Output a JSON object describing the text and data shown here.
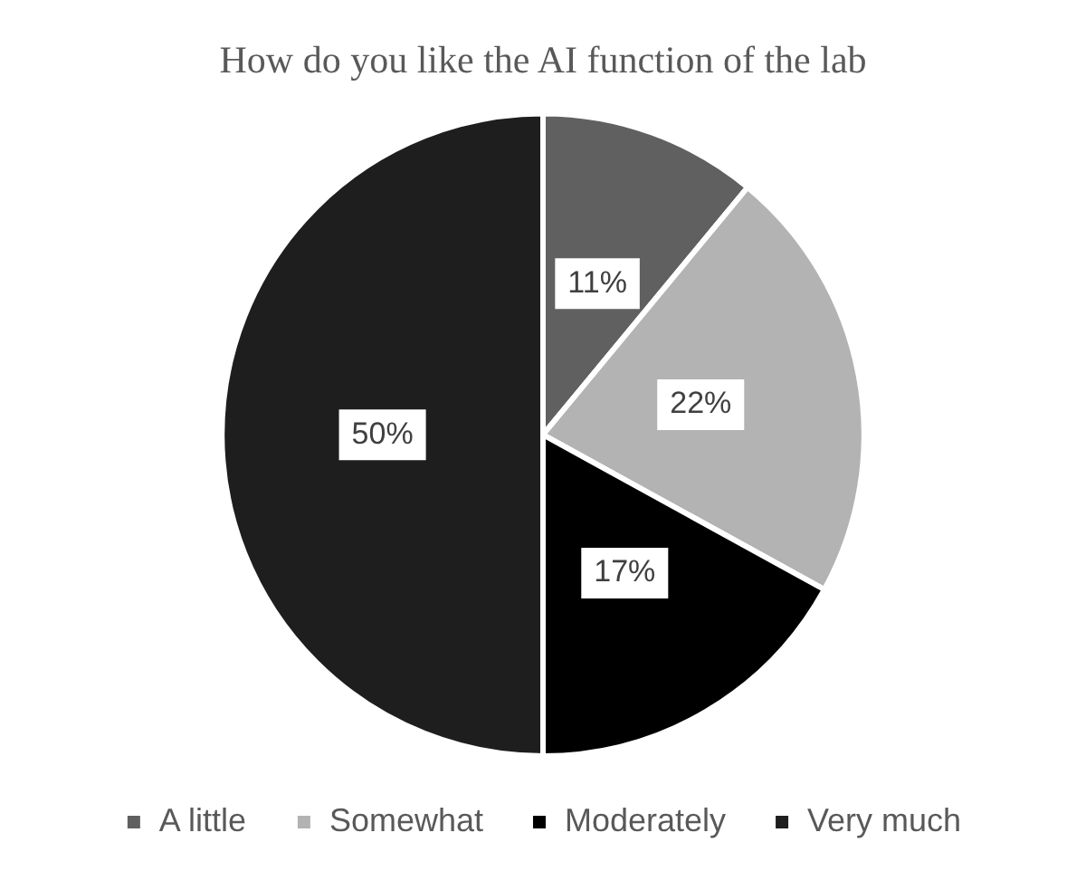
{
  "chart_data": {
    "type": "pie",
    "title": "How do you like the AI function of the lab",
    "categories": [
      "A little",
      "Somewhat",
      "Moderately",
      "Very much"
    ],
    "values": [
      11,
      22,
      17,
      50
    ],
    "colors": [
      "#606060",
      "#b3b3b3",
      "#000000",
      "#1e1e1e"
    ],
    "value_labels": [
      "11%",
      "22%",
      "17%",
      "50%"
    ],
    "legend": "bottom"
  }
}
